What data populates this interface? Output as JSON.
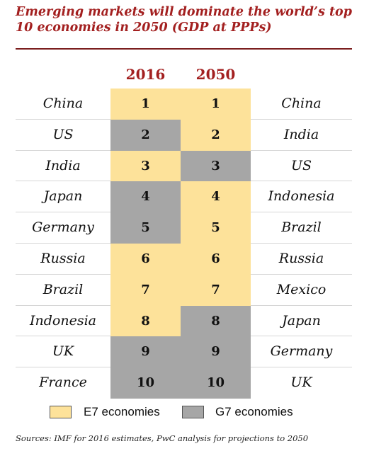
{
  "chart_data": {
    "type": "table",
    "title": "Emerging markets will dominate the world’s top 10 economies in 2050 (GDP at PPPs)",
    "columns": [
      "2016",
      "2050"
    ],
    "rows": [
      {
        "rank": "1",
        "left_country": "China",
        "right_country": "China",
        "left_group": "E7",
        "right_group": "E7"
      },
      {
        "rank": "2",
        "left_country": "US",
        "right_country": "India",
        "left_group": "G7",
        "right_group": "E7"
      },
      {
        "rank": "3",
        "left_country": "India",
        "right_country": "US",
        "left_group": "E7",
        "right_group": "G7"
      },
      {
        "rank": "4",
        "left_country": "Japan",
        "right_country": "Indonesia",
        "left_group": "G7",
        "right_group": "E7"
      },
      {
        "rank": "5",
        "left_country": "Germany",
        "right_country": "Brazil",
        "left_group": "G7",
        "right_group": "E7"
      },
      {
        "rank": "6",
        "left_country": "Russia",
        "right_country": "Russia",
        "left_group": "E7",
        "right_group": "E7"
      },
      {
        "rank": "7",
        "left_country": "Brazil",
        "right_country": "Mexico",
        "left_group": "E7",
        "right_group": "E7"
      },
      {
        "rank": "8",
        "left_country": "Indonesia",
        "right_country": "Japan",
        "left_group": "E7",
        "right_group": "G7"
      },
      {
        "rank": "9",
        "left_country": "UK",
        "right_country": "Germany",
        "left_group": "G7",
        "right_group": "G7"
      },
      {
        "rank": "10",
        "left_country": "France",
        "right_country": "UK",
        "left_group": "G7",
        "right_group": "G7"
      }
    ],
    "legend": [
      {
        "key": "E7",
        "label": "E7 economies",
        "color": "#fde29a"
      },
      {
        "key": "G7",
        "label": "G7 economies",
        "color": "#a6a6a6"
      }
    ],
    "legend_placement": "bottom",
    "source": "Sources: IMF for 2016 estimates, PwC analysis for projections to 2050"
  }
}
